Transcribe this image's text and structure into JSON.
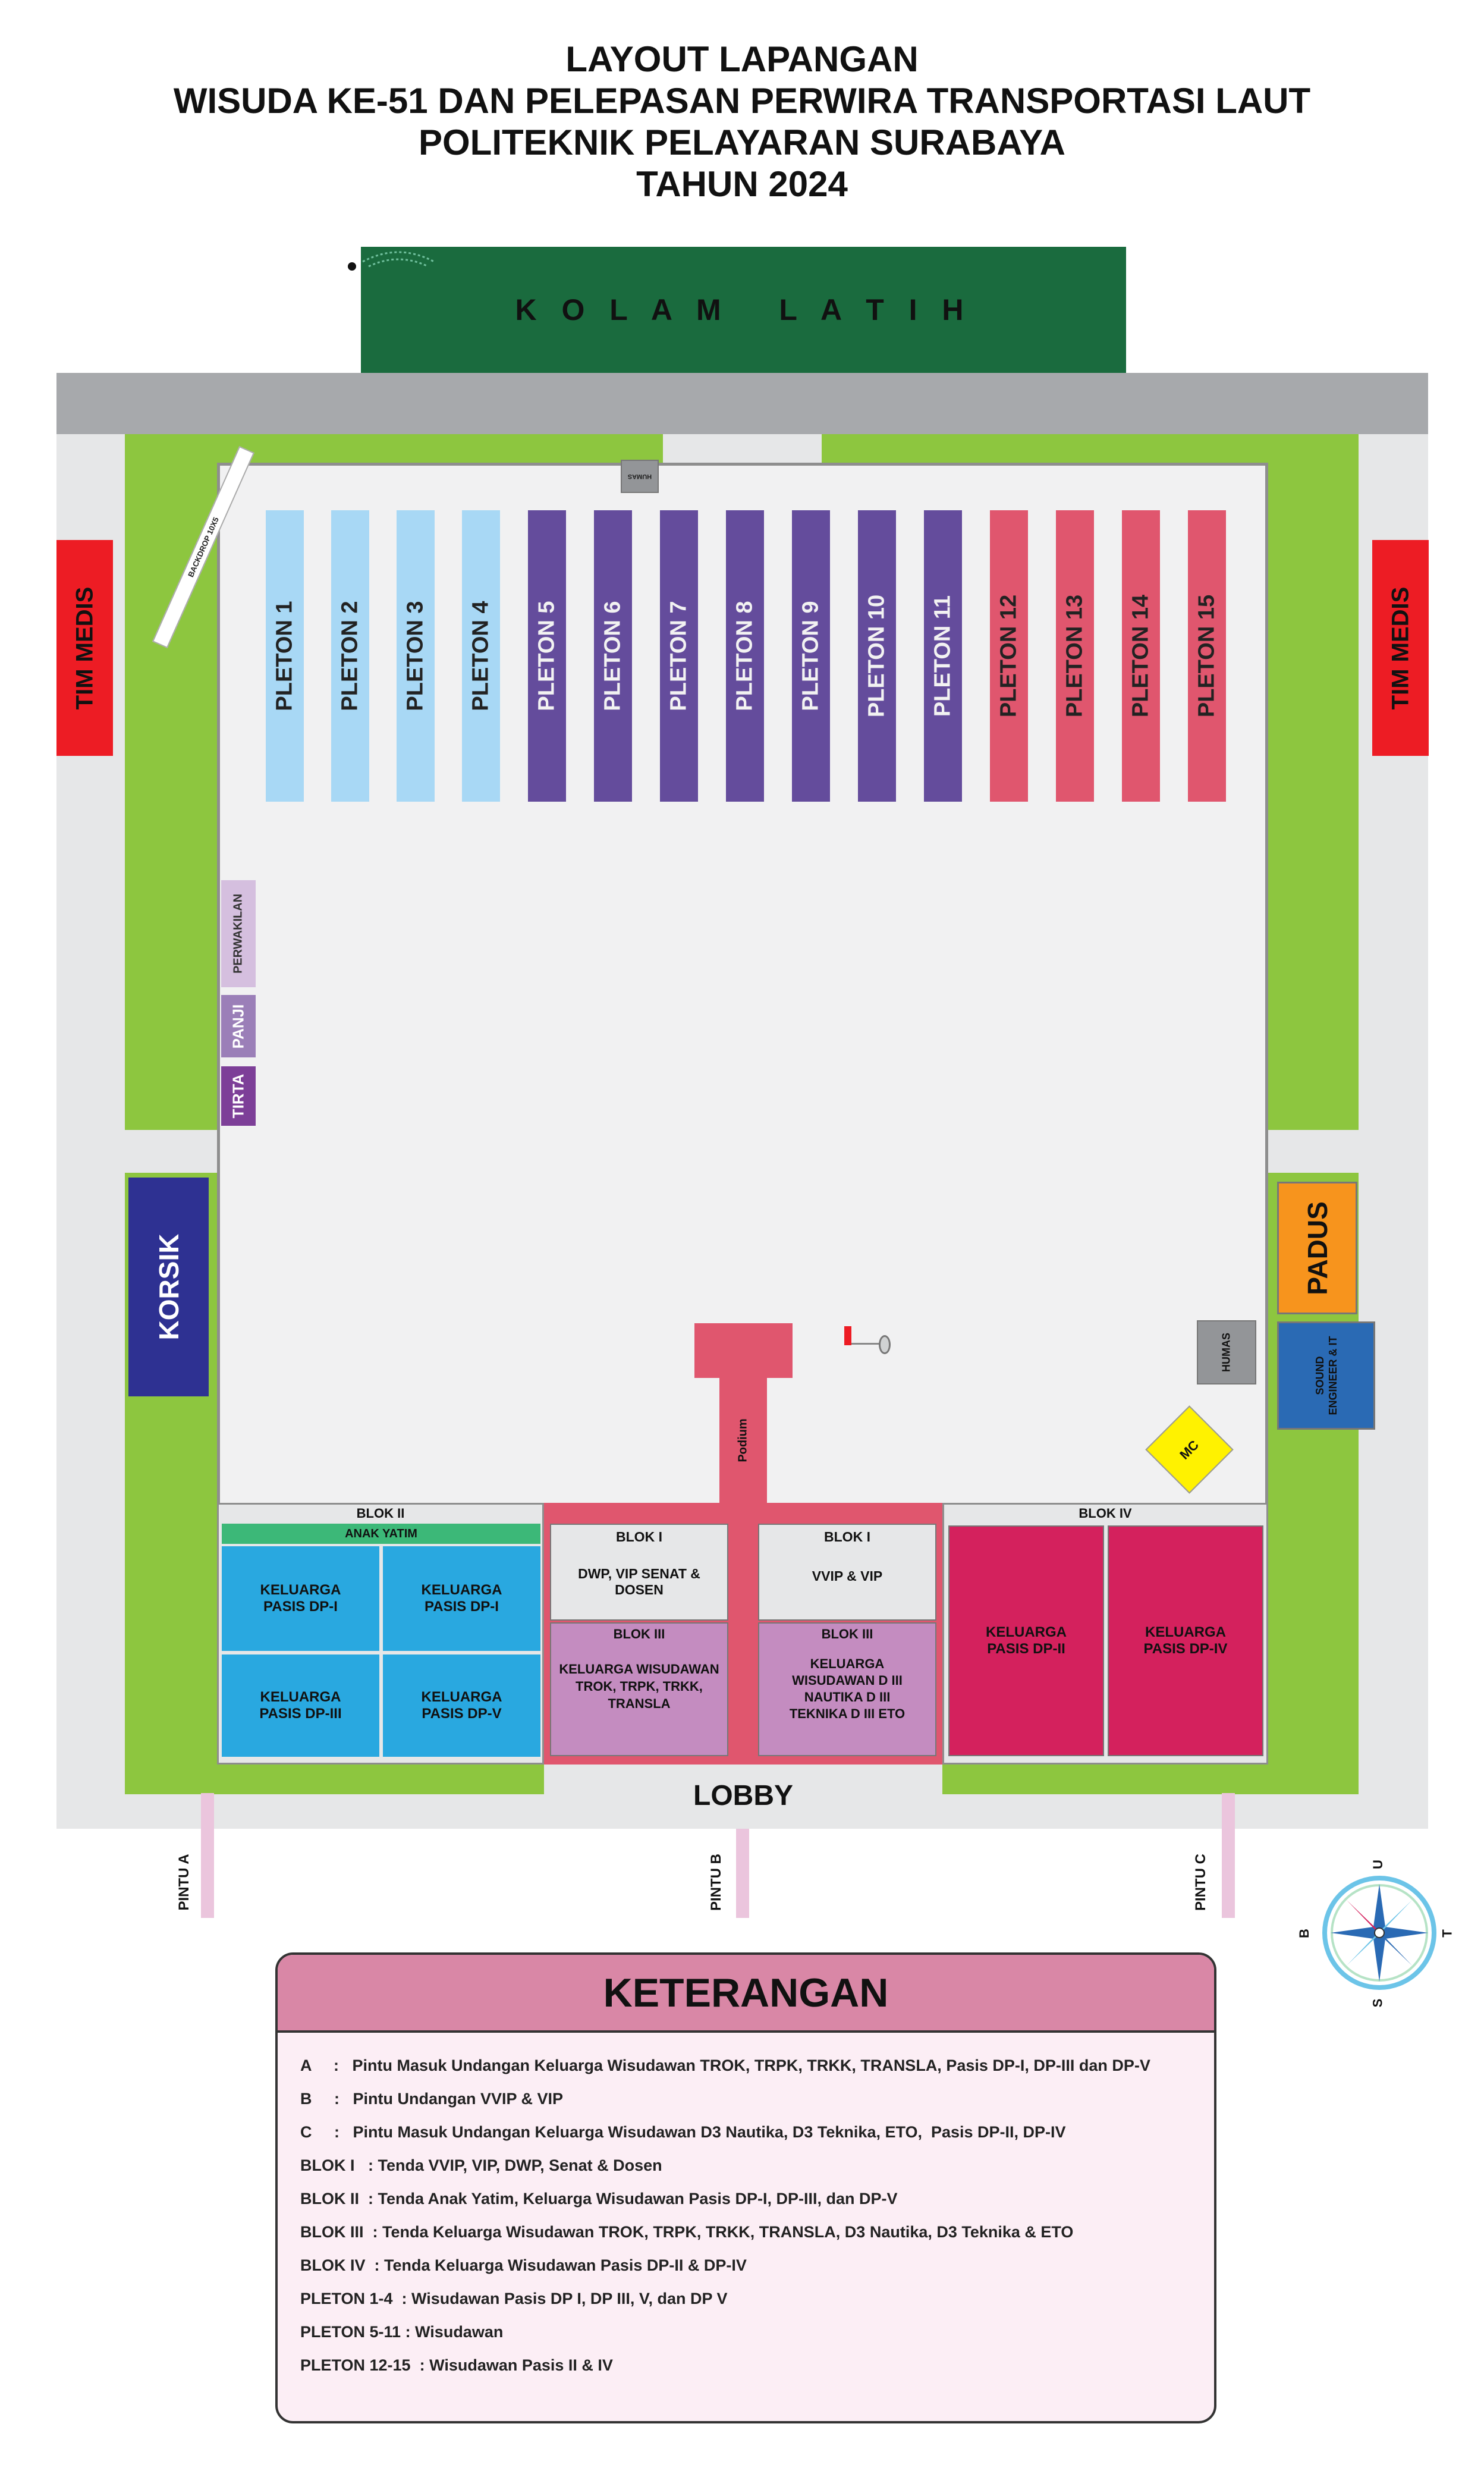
{
  "title": {
    "line1": "LAYOUT LAPANGAN",
    "line2": "WISUDA KE-51 DAN PELEPASAN PERWIRA TRANSPORTASI LAUT",
    "line3": "POLITEKNIK PELAYARAN SURABAYA",
    "line4": "TAHUN 2024"
  },
  "kolam": "K O L A M   L A T I H",
  "backdrop": "BACKDROP 10X5",
  "humas_top": "HUMAS",
  "tim_medis": "TIM MEDIS",
  "pletons": [
    "PLETON 1",
    "PLETON 2",
    "PLETON 3",
    "PLETON 4",
    "PLETON 5",
    "PLETON 6",
    "PLETON 7",
    "PLETON 8",
    "PLETON 9",
    "PLETON 10",
    "PLETON 11",
    "PLETON 12",
    "PLETON 13",
    "PLETON 14",
    "PLETON 15"
  ],
  "perwakilan": "PERWAKILAN",
  "panji": "PANJI",
  "tirta": "TIRTA",
  "korsik": "KORSIK",
  "padus": "PADUS",
  "humas_right": "HUMAS",
  "sound": "SOUND ENGINEER & IT",
  "mc": "MC",
  "podium": "Podium",
  "blok2": {
    "label": "BLOK II",
    "anak_yatim": "ANAK YATIM",
    "cells": [
      "KELUARGA PASIS DP-I",
      "KELUARGA PASIS DP-I",
      "KELUARGA PASIS DP-III",
      "KELUARGA PASIS DP-V"
    ]
  },
  "blok1_left": {
    "label": "BLOK I",
    "text": "DWP, VIP SENAT & DOSEN"
  },
  "blok1_right": {
    "label": "BLOK I",
    "text": "VVIP & VIP"
  },
  "blok3_left": {
    "label": "BLOK III",
    "text": "KELUARGA WISUDAWAN TROK, TRPK, TRKK, TRANSLA"
  },
  "blok3_right": {
    "label": "BLOK III",
    "text": "KELUARGA WISUDAWAN D III NAUTIKA D III TEKNIKA D III ETO"
  },
  "blok4": {
    "label": "BLOK IV",
    "cells": [
      "KELUARGA PASIS DP-II",
      "KELUARGA PASIS DP-IV"
    ]
  },
  "lobby": "LOBBY",
  "gates": [
    "PINTU A",
    "PINTU B",
    "PINTU C"
  ],
  "compass": {
    "n": "U",
    "s": "S",
    "e": "T",
    "w": "B"
  },
  "legend": {
    "title": "KETERANGAN",
    "items": [
      "A     :   Pintu Masuk Undangan Keluarga Wisudawan TROK, TRPK, TRKK, TRANSLA, Pasis DP-I, DP-III dan DP-V",
      "B     :   Pintu Undangan VVIP & VIP",
      "C     :   Pintu Masuk Undangan Keluarga Wisudawan D3 Nautika, D3 Teknika, ETO,  Pasis DP-II, DP-IV",
      "BLOK I   : Tenda VVIP, VIP, DWP, Senat & Dosen",
      "BLOK II  : Tenda Anak Yatim, Keluarga Wisudawan Pasis DP-I, DP-III, dan DP-V",
      "BLOK III  : Tenda Keluarga Wisudawan TROK, TRPK, TRKK, TRANSLA, D3 Nautika, D3 Teknika & ETO",
      "BLOK IV  : Tenda Keluarga Wisudawan Pasis DP-II & DP-IV",
      "PLETON 1-4  : Wisudawan Pasis DP I, DP III, V, dan DP V",
      "PLETON 5-11 : Wisudawan",
      "PLETON 12-15  : Wisudawan Pasis II & IV"
    ]
  },
  "colors": {
    "kolam": "#1a6b3e",
    "road": "#a7a9ac",
    "grass": "#8dc63f",
    "field": "#f1f1f2",
    "light_blue": "#a8d8f5",
    "purple": "#644c9c",
    "pink": "#e0566e",
    "tim_medis": "#ed1c24",
    "korsik": "#2e3192",
    "padus": "#f7941d",
    "sound": "#2a6ab4",
    "humas": "#939598",
    "mc": "#fff200",
    "blok_blue": "#29a8e0",
    "blok_magenta": "#d4215d",
    "blok_violet": "#c48cc0",
    "blok_red": "#e0566e",
    "anak_yatim": "#3cb878",
    "legend_header": "#d987a6",
    "legend_body": "#fceef5"
  }
}
